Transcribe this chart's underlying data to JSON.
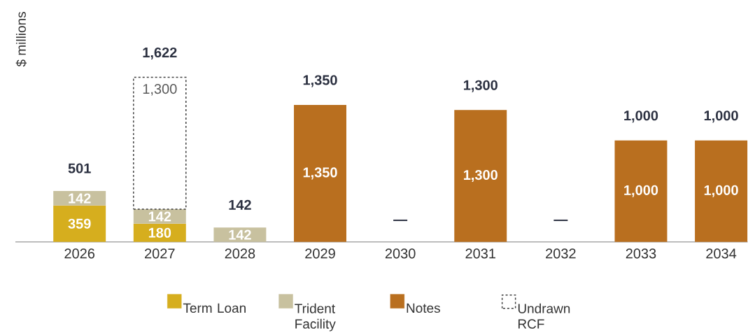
{
  "chart_data": {
    "type": "bar",
    "stacked": true,
    "ylabel": "$ millions",
    "categories": [
      "2026",
      "2027",
      "2028",
      "2029",
      "2030",
      "2031",
      "2032",
      "2033",
      "2034"
    ],
    "series": [
      {
        "name": "Term Loan",
        "color": "#d6ae1e",
        "values": [
          359,
          180,
          null,
          null,
          null,
          null,
          null,
          null,
          null
        ],
        "value_labels": [
          "359",
          "180",
          null,
          null,
          null,
          null,
          null,
          null,
          null
        ]
      },
      {
        "name": "Trident Facility",
        "color": "#c8c19f",
        "values": [
          142,
          142,
          142,
          null,
          null,
          null,
          null,
          null,
          null
        ],
        "value_labels": [
          "142",
          "142",
          "142",
          null,
          null,
          null,
          null,
          null,
          null
        ]
      },
      {
        "name": "Notes",
        "color": "#b96f1f",
        "values": [
          null,
          null,
          null,
          1350,
          null,
          1300,
          null,
          1000,
          1000
        ],
        "value_labels": [
          null,
          null,
          null,
          "1,350",
          null,
          "1,300",
          null,
          "1,000",
          "1,000"
        ]
      },
      {
        "name": "Undrawn RCF",
        "color": "#404040",
        "line_style": "dashed",
        "values": [
          null,
          1300,
          null,
          null,
          null,
          null,
          null,
          null,
          null
        ],
        "value_labels": [
          null,
          "1,300",
          null,
          null,
          null,
          null,
          null,
          null,
          null
        ]
      }
    ],
    "totals": [
      "501",
      "1,622",
      "142",
      "1,350",
      "—",
      "1,300",
      "—",
      "1,000",
      "1,000"
    ],
    "tick_labels": "x",
    "legend": "bottom"
  }
}
